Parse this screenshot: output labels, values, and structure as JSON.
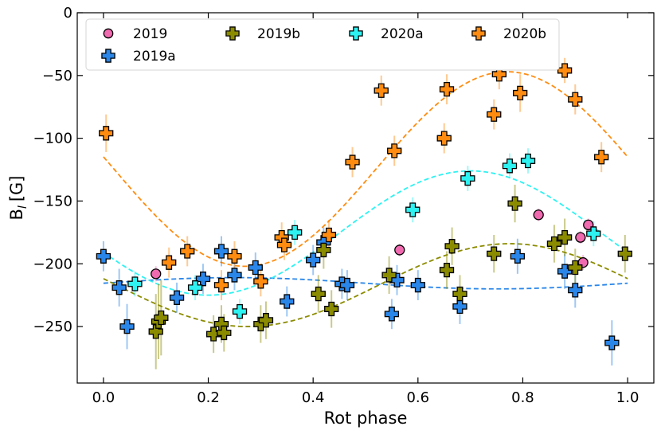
{
  "chart_data": {
    "type": "scatter",
    "xlabel": "Rot phase",
    "ylabel": "B",
    "ylabel_sub": "l",
    "ylabel_unit": "[G]",
    "xlim": [
      -0.05,
      1.05
    ],
    "ylim": [
      -295,
      0
    ],
    "xticks": [
      0.0,
      0.2,
      0.4,
      0.6,
      0.8,
      1.0
    ],
    "xtick_labels": [
      "0.0",
      "0.2",
      "0.4",
      "0.6",
      "0.8",
      "1.0"
    ],
    "yticks": [
      0,
      -50,
      -100,
      -150,
      -200,
      -250
    ],
    "ytick_labels": [
      "0",
      "−50",
      "−100",
      "−150",
      "−200",
      "−250"
    ],
    "legend_position": "top-left",
    "series": [
      {
        "name": "2019",
        "color": "#f06ab0",
        "marker": "circle",
        "points": [
          {
            "x": 0.1,
            "y": -208,
            "err": 6
          },
          {
            "x": 0.565,
            "y": -189,
            "err": 5
          },
          {
            "x": 0.83,
            "y": -161,
            "err": 5
          },
          {
            "x": 0.91,
            "y": -179,
            "err": 5
          },
          {
            "x": 0.915,
            "y": -199,
            "err": 6
          },
          {
            "x": 0.925,
            "y": -169,
            "err": 5
          }
        ]
      },
      {
        "name": "2019a",
        "color": "#2a86e8",
        "marker": "plus",
        "fit": {
          "mean": -215.5,
          "amp": 4.5,
          "peak_phase": 0.25
        },
        "points": [
          {
            "x": 0.0,
            "y": -194,
            "err": 12
          },
          {
            "x": 0.03,
            "y": -219,
            "err": 15
          },
          {
            "x": 0.045,
            "y": -250,
            "err": 18
          },
          {
            "x": 0.14,
            "y": -227,
            "err": 12
          },
          {
            "x": 0.19,
            "y": -212,
            "err": 12
          },
          {
            "x": 0.225,
            "y": -190,
            "err": 12
          },
          {
            "x": 0.25,
            "y": -209,
            "err": 12
          },
          {
            "x": 0.29,
            "y": -203,
            "err": 12
          },
          {
            "x": 0.35,
            "y": -230,
            "err": 12
          },
          {
            "x": 0.4,
            "y": -197,
            "err": 12
          },
          {
            "x": 0.42,
            "y": -183,
            "err": 12
          },
          {
            "x": 0.455,
            "y": -216,
            "err": 12
          },
          {
            "x": 0.465,
            "y": -217,
            "err": 12
          },
          {
            "x": 0.55,
            "y": -240,
            "err": 12
          },
          {
            "x": 0.56,
            "y": -213,
            "err": 12
          },
          {
            "x": 0.6,
            "y": -217,
            "err": 12
          },
          {
            "x": 0.68,
            "y": -234,
            "err": 14
          },
          {
            "x": 0.79,
            "y": -194,
            "err": 14
          },
          {
            "x": 0.88,
            "y": -206,
            "err": 14
          },
          {
            "x": 0.9,
            "y": -221,
            "err": 14
          },
          {
            "x": 0.97,
            "y": -263,
            "err": 18
          }
        ]
      },
      {
        "name": "2019b",
        "color": "#8b8b00",
        "marker": "plus",
        "fit": {
          "mean": -217,
          "amp": 33,
          "peak_phase": 0.775
        },
        "points": [
          {
            "x": 0.1,
            "y": -254,
            "err": 30
          },
          {
            "x": 0.105,
            "y": -246,
            "err": 30
          },
          {
            "x": 0.11,
            "y": -243,
            "err": 30
          },
          {
            "x": 0.21,
            "y": -256,
            "err": 15
          },
          {
            "x": 0.225,
            "y": -248,
            "err": 15
          },
          {
            "x": 0.23,
            "y": -255,
            "err": 15
          },
          {
            "x": 0.3,
            "y": -248,
            "err": 15
          },
          {
            "x": 0.31,
            "y": -245,
            "err": 15
          },
          {
            "x": 0.41,
            "y": -224,
            "err": 15
          },
          {
            "x": 0.42,
            "y": -189,
            "err": 15
          },
          {
            "x": 0.435,
            "y": -236,
            "err": 15
          },
          {
            "x": 0.545,
            "y": -209,
            "err": 15
          },
          {
            "x": 0.655,
            "y": -205,
            "err": 15
          },
          {
            "x": 0.665,
            "y": -186,
            "err": 15
          },
          {
            "x": 0.68,
            "y": -224,
            "err": 15
          },
          {
            "x": 0.745,
            "y": -192,
            "err": 15
          },
          {
            "x": 0.785,
            "y": -152,
            "err": 15
          },
          {
            "x": 0.86,
            "y": -184,
            "err": 15
          },
          {
            "x": 0.88,
            "y": -179,
            "err": 15
          },
          {
            "x": 0.9,
            "y": -203,
            "err": 15
          },
          {
            "x": 0.995,
            "y": -192,
            "err": 15
          }
        ]
      },
      {
        "name": "2020a",
        "color": "#2ef2f2",
        "marker": "plus",
        "fit": {
          "mean": -175.5,
          "amp": 49.5,
          "peak_phase": 0.7
        },
        "points": [
          {
            "x": 0.06,
            "y": -216,
            "err": 10
          },
          {
            "x": 0.175,
            "y": -219,
            "err": 10
          },
          {
            "x": 0.26,
            "y": -238,
            "err": 10
          },
          {
            "x": 0.365,
            "y": -175,
            "err": 10
          },
          {
            "x": 0.59,
            "y": -157,
            "err": 10
          },
          {
            "x": 0.695,
            "y": -132,
            "err": 10
          },
          {
            "x": 0.775,
            "y": -122,
            "err": 10
          },
          {
            "x": 0.81,
            "y": -118,
            "err": 10
          },
          {
            "x": 0.935,
            "y": -176,
            "err": 10
          }
        ]
      },
      {
        "name": "2020b",
        "color": "#ff8c10",
        "marker": "plus",
        "fit": {
          "mean": -124.5,
          "amp": 77.5,
          "peak_phase": 0.77
        },
        "points": [
          {
            "x": 0.005,
            "y": -96,
            "err": 15
          },
          {
            "x": 0.125,
            "y": -199,
            "err": 12
          },
          {
            "x": 0.16,
            "y": -190,
            "err": 12
          },
          {
            "x": 0.225,
            "y": -217,
            "err": 12
          },
          {
            "x": 0.25,
            "y": -194,
            "err": 12
          },
          {
            "x": 0.3,
            "y": -214,
            "err": 12
          },
          {
            "x": 0.34,
            "y": -179,
            "err": 12
          },
          {
            "x": 0.345,
            "y": -185,
            "err": 12
          },
          {
            "x": 0.43,
            "y": -177,
            "err": 12
          },
          {
            "x": 0.475,
            "y": -119,
            "err": 12
          },
          {
            "x": 0.53,
            "y": -62,
            "err": 12
          },
          {
            "x": 0.555,
            "y": -110,
            "err": 12
          },
          {
            "x": 0.65,
            "y": -100,
            "err": 12
          },
          {
            "x": 0.655,
            "y": -61,
            "err": 12
          },
          {
            "x": 0.745,
            "y": -81,
            "err": 12
          },
          {
            "x": 0.755,
            "y": -49,
            "err": 12
          },
          {
            "x": 0.795,
            "y": -64,
            "err": 15
          },
          {
            "x": 0.88,
            "y": -46,
            "err": 10
          },
          {
            "x": 0.9,
            "y": -69,
            "err": 12
          },
          {
            "x": 0.95,
            "y": -115,
            "err": 12
          }
        ]
      }
    ]
  }
}
